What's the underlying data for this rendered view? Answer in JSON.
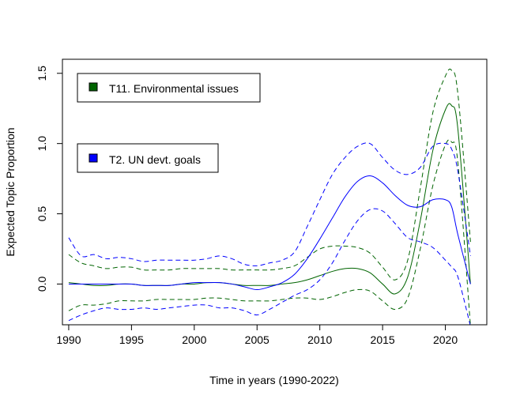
{
  "chart_data": {
    "type": "line",
    "title": "",
    "xlabel": "Time in years (1990-2022)",
    "ylabel": "Expected Topic Proportion",
    "xlim": [
      1989.5,
      2023.3
    ],
    "ylim": [
      -0.29,
      1.6
    ],
    "x_ticks": [
      1990,
      1995,
      2000,
      2005,
      2010,
      2015,
      2020
    ],
    "y_ticks": [
      0.0,
      0.5,
      1.0,
      1.5
    ],
    "x_tick_labels": [
      "1990",
      "1995",
      "2000",
      "2005",
      "2010",
      "2015",
      "2020"
    ],
    "y_tick_labels": [
      "0.0",
      "0.5",
      "1.0",
      "1.5"
    ],
    "grid": false,
    "legend_position": "top-left",
    "x": [
      1990,
      1991,
      1992,
      1993,
      1994,
      1995,
      1996,
      1997,
      1998,
      1999,
      2000,
      2001,
      2002,
      2003,
      2004,
      2005,
      2006,
      2007,
      2008,
      2009,
      2010,
      2011,
      2012,
      2013,
      2014,
      2015,
      2016,
      2017,
      2018,
      2019,
      2020,
      2020.5,
      2021,
      2022
    ],
    "series": [
      {
        "name": "T11. Environmental issues",
        "color": "#006400",
        "mean": [
          0.01,
          0.0,
          -0.01,
          -0.01,
          0.0,
          0.0,
          -0.01,
          -0.01,
          -0.01,
          0.0,
          0.0,
          0.01,
          0.01,
          0.0,
          -0.01,
          -0.01,
          -0.01,
          0.0,
          0.01,
          0.03,
          0.06,
          0.09,
          0.11,
          0.11,
          0.08,
          0.0,
          -0.07,
          0.05,
          0.45,
          0.95,
          1.24,
          1.27,
          1.1,
          0.0
        ],
        "upper": [
          0.21,
          0.15,
          0.13,
          0.11,
          0.12,
          0.12,
          0.1,
          0.1,
          0.1,
          0.11,
          0.11,
          0.11,
          0.11,
          0.1,
          0.1,
          0.1,
          0.1,
          0.11,
          0.13,
          0.19,
          0.25,
          0.27,
          0.27,
          0.26,
          0.22,
          0.12,
          0.03,
          0.17,
          0.68,
          1.22,
          1.48,
          1.52,
          1.35,
          0.3
        ],
        "lower": [
          -0.19,
          -0.15,
          -0.15,
          -0.14,
          -0.12,
          -0.12,
          -0.12,
          -0.11,
          -0.11,
          -0.11,
          -0.11,
          -0.1,
          -0.1,
          -0.11,
          -0.12,
          -0.12,
          -0.12,
          -0.11,
          -0.1,
          -0.1,
          -0.11,
          -0.09,
          -0.06,
          -0.04,
          -0.05,
          -0.12,
          -0.18,
          -0.1,
          0.25,
          0.7,
          0.99,
          1.01,
          0.86,
          -0.3
        ]
      },
      {
        "name": "T2. UN devt. goals",
        "color": "#0000ff",
        "mean": [
          0.0,
          0.0,
          0.0,
          0.0,
          0.0,
          0.0,
          -0.01,
          -0.01,
          -0.01,
          0.0,
          0.01,
          0.01,
          0.01,
          0.0,
          -0.02,
          -0.04,
          -0.02,
          0.01,
          0.07,
          0.18,
          0.32,
          0.47,
          0.62,
          0.73,
          0.77,
          0.72,
          0.63,
          0.56,
          0.55,
          0.6,
          0.6,
          0.55,
          0.35,
          0.0
        ],
        "upper": [
          0.33,
          0.2,
          0.21,
          0.18,
          0.19,
          0.18,
          0.16,
          0.17,
          0.17,
          0.17,
          0.17,
          0.18,
          0.2,
          0.18,
          0.14,
          0.13,
          0.15,
          0.17,
          0.23,
          0.41,
          0.6,
          0.78,
          0.9,
          0.98,
          1.0,
          0.9,
          0.81,
          0.78,
          0.83,
          0.98,
          1.0,
          0.96,
          0.8,
          0.2
        ],
        "lower": [
          -0.26,
          -0.22,
          -0.19,
          -0.17,
          -0.18,
          -0.18,
          -0.17,
          -0.18,
          -0.17,
          -0.16,
          -0.15,
          -0.15,
          -0.17,
          -0.17,
          -0.19,
          -0.22,
          -0.18,
          -0.13,
          -0.08,
          -0.04,
          0.03,
          0.15,
          0.31,
          0.45,
          0.53,
          0.52,
          0.43,
          0.33,
          0.3,
          0.26,
          0.17,
          0.12,
          0.05,
          -0.3
        ]
      }
    ]
  }
}
